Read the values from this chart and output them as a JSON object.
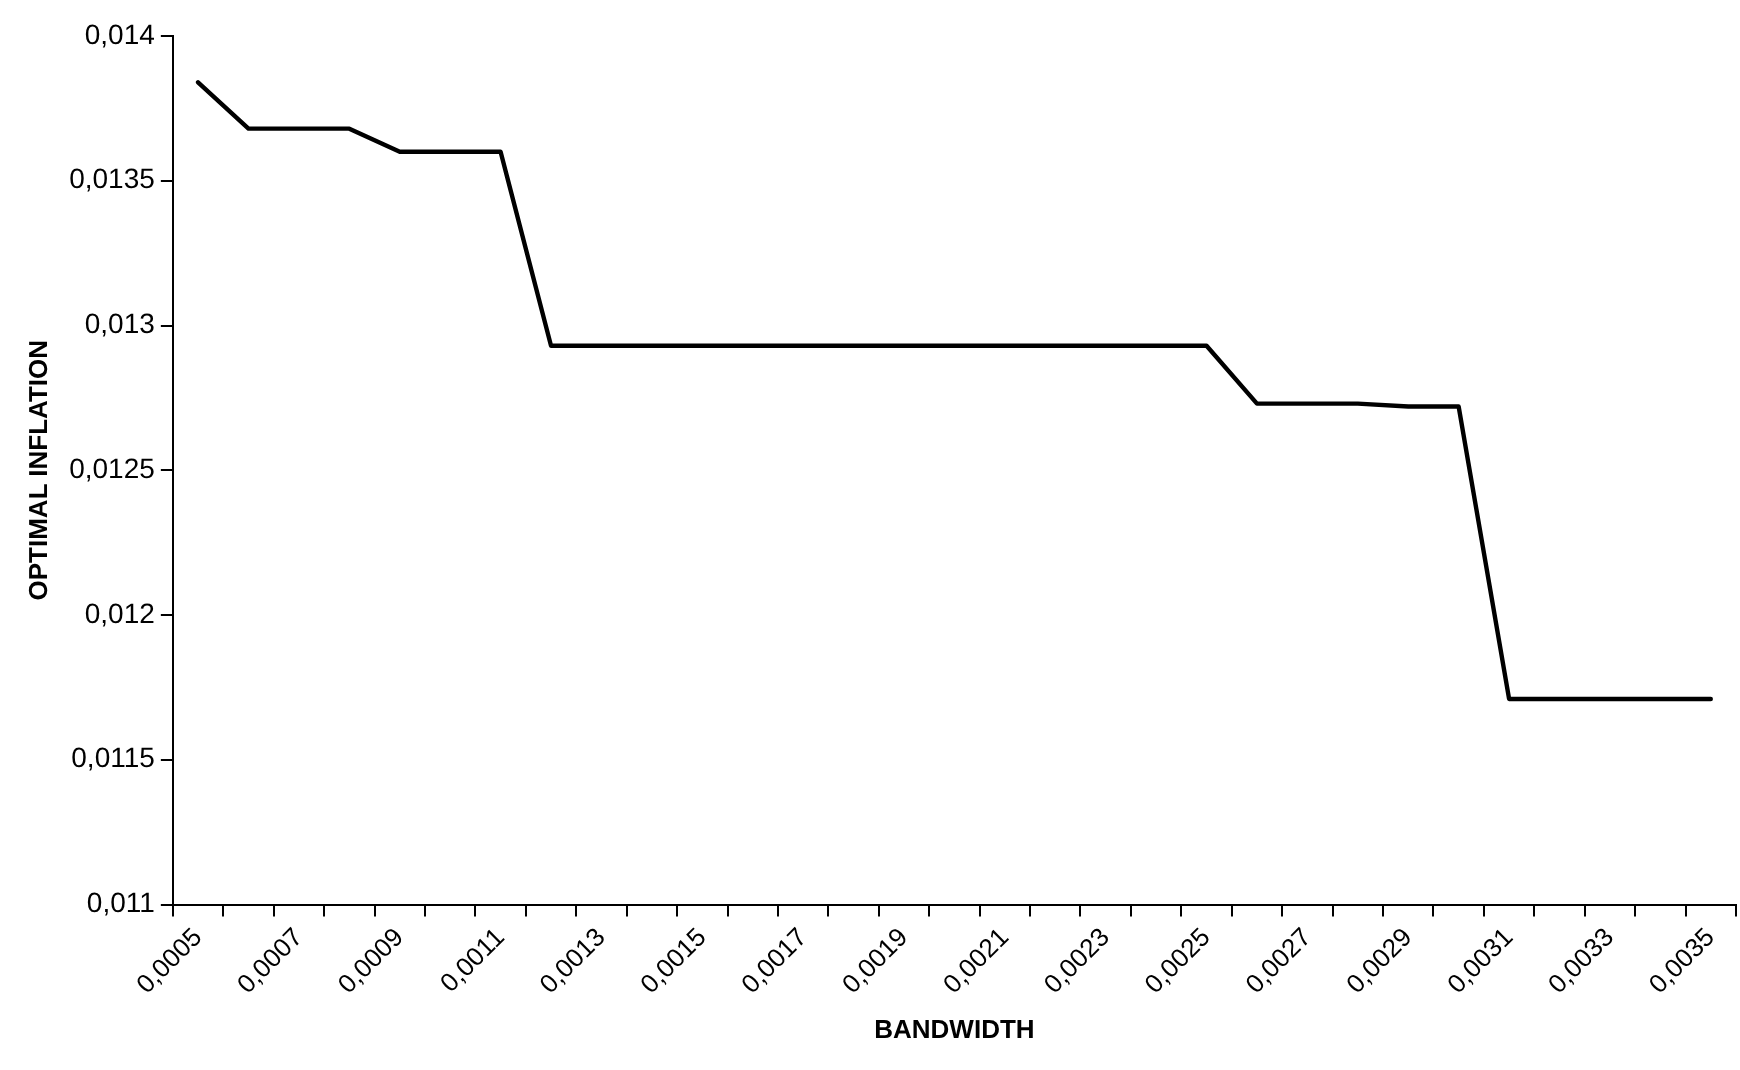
{
  "chart_data": {
    "type": "line",
    "xlabel": "BANDWIDTH",
    "ylabel": "OPTIMAL INFLATION",
    "categories": [
      "0,0005",
      null,
      "0,0007",
      null,
      "0,0009",
      null,
      "0,0011",
      null,
      "0,0013",
      null,
      "0,0015",
      null,
      "0,0017",
      null,
      "0,0019",
      null,
      "0,0021",
      null,
      "0,0023",
      null,
      "0,0025",
      null,
      "0,0027",
      null,
      "0,0029",
      null,
      "0,0031",
      null,
      "0,0033",
      null,
      "0,0035"
    ],
    "series": [
      {
        "color": "#000000",
        "values": [
          0.01384,
          0.01368,
          0.01368,
          0.01368,
          0.0136,
          0.0136,
          0.0136,
          0.01293,
          0.01293,
          0.01293,
          0.01293,
          0.01293,
          0.01293,
          0.01293,
          0.01293,
          0.01293,
          0.01293,
          0.01293,
          0.01293,
          0.01293,
          0.01293,
          0.01273,
          0.01273,
          0.01273,
          0.01272,
          0.01272,
          0.01171,
          0.01171,
          0.01171,
          0.01171,
          0.01171
        ]
      }
    ],
    "ylim": [
      0.011,
      0.014
    ],
    "yticks": [
      {
        "value": 0.011,
        "label": "0,011"
      },
      {
        "value": 0.0115,
        "label": "0,0115"
      },
      {
        "value": 0.012,
        "label": "0,012"
      },
      {
        "value": 0.0125,
        "label": "0,0125"
      },
      {
        "value": 0.013,
        "label": "0,013"
      },
      {
        "value": 0.0135,
        "label": "0,0135"
      },
      {
        "value": 0.014,
        "label": "0,014"
      }
    ],
    "grid": false,
    "legend": false,
    "marker": "none",
    "line_style": "solid"
  }
}
